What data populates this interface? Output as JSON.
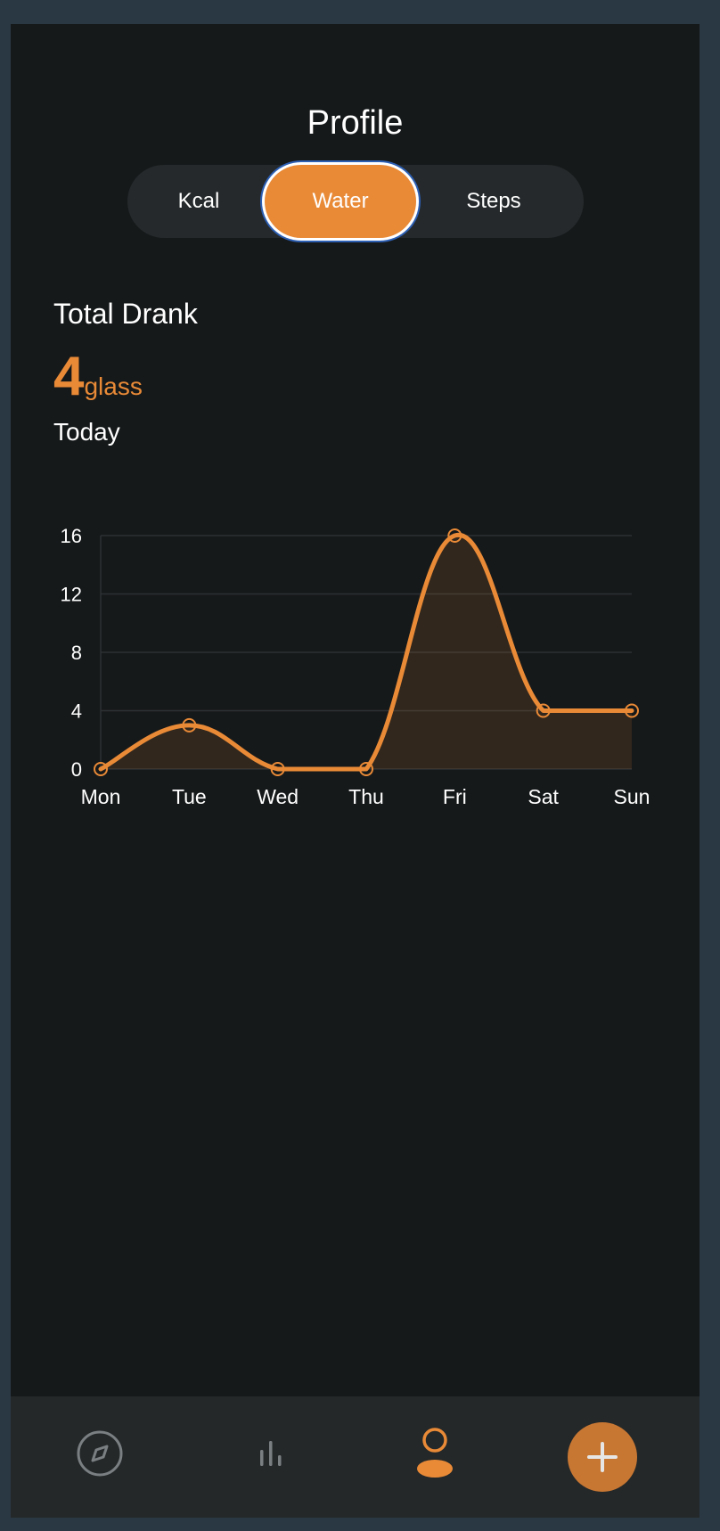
{
  "header": {
    "title": "Profile"
  },
  "segments": {
    "items": [
      {
        "label": "Kcal",
        "selected": false
      },
      {
        "label": "Water",
        "selected": true
      },
      {
        "label": "Steps",
        "selected": false
      }
    ]
  },
  "summary": {
    "label": "Total Drank",
    "value": "4",
    "unit": "glass",
    "period": "Today"
  },
  "colors": {
    "accent": "#e98a37",
    "background": "#16191a",
    "frame": "#2a3843",
    "tabbar": "#242829",
    "fab": "#c87733",
    "focus_ring": "#2d5fb3"
  },
  "chart_data": {
    "type": "area",
    "categories": [
      "Mon",
      "Tue",
      "Wed",
      "Thu",
      "Fri",
      "Sat",
      "Sun"
    ],
    "series": [
      {
        "values": [
          0,
          3,
          0,
          0,
          16,
          4,
          4
        ]
      }
    ],
    "yticks": [
      "16",
      "12",
      "8",
      "4",
      "0"
    ],
    "ylim": [
      0,
      16
    ],
    "grid": true,
    "smooth": true
  },
  "tabbar": {
    "items": [
      {
        "icon": "compass-icon",
        "active": false
      },
      {
        "icon": "bar-chart-icon",
        "active": false
      },
      {
        "icon": "profile-icon",
        "active": true
      }
    ],
    "fab_icon": "plus-icon"
  }
}
